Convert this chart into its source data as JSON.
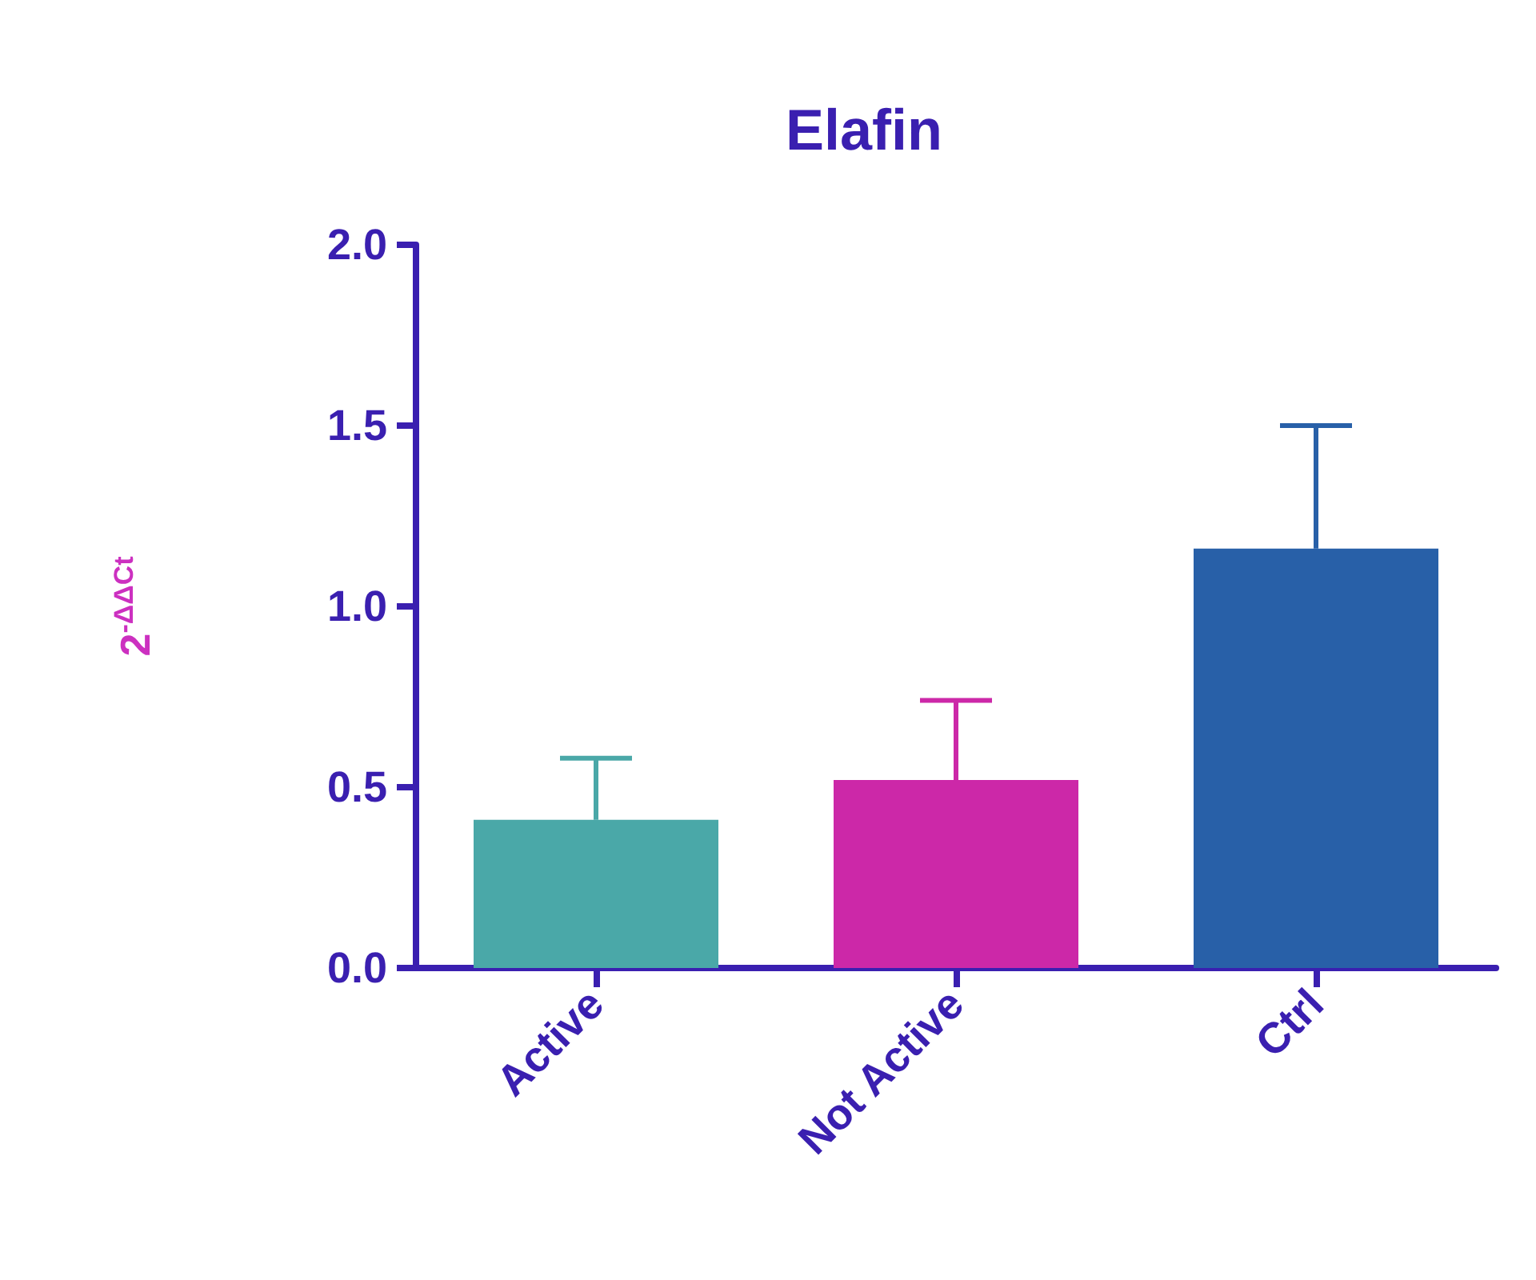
{
  "chart_data": {
    "type": "bar",
    "title": "Elafin",
    "ylabel": "2$^{-ΔΔCt}$",
    "categories": [
      "Active",
      "Not Active",
      "Ctrl"
    ],
    "values": [
      0.41,
      0.52,
      1.16
    ],
    "colors": [
      "#4aa8a8",
      "#cc28a8",
      "#2860a8"
    ],
    "errors": [
      [
        0.41,
        0.58
      ],
      [
        0.52,
        0.74
      ],
      [
        1.16,
        1.5
      ]
    ],
    "ylim": [
      0,
      2
    ],
    "yticks": [
      {
        "value": 0,
        "label": "0.0"
      },
      {
        "value": 0.5,
        "label": "0.5"
      },
      {
        "value": 1,
        "label": "1.0"
      },
      {
        "value": 1.5,
        "label": "1.5"
      },
      {
        "value": 2,
        "label": "2.0"
      }
    ],
    "grid": false
  }
}
